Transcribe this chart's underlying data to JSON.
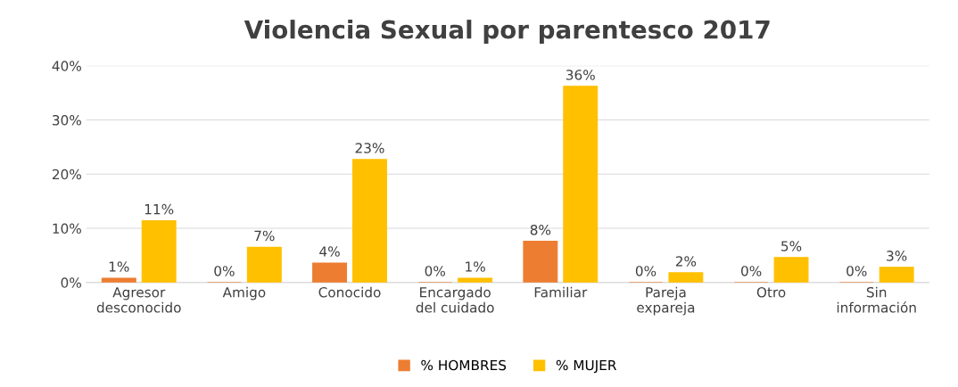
{
  "chart_data": {
    "type": "bar",
    "title": "Violencia Sexual por parentesco 2017",
    "categories": [
      "Agresor\ndesconocido",
      "Amigo",
      "Conocido",
      "Encargado\ndel cuidado",
      "Familiar",
      "Pareja\nexpareja",
      "Otro",
      "Sin\ninformación"
    ],
    "series": [
      {
        "name": "% HOMBRES",
        "color": "#ed7d31",
        "values": [
          0.8,
          0,
          3.6,
          0,
          7.6,
          0,
          0,
          0
        ],
        "value_labels": [
          "1%",
          "0%",
          "4%",
          "0%",
          "8%",
          "0%",
          "0%",
          "0%"
        ]
      },
      {
        "name": "% MUJER",
        "color": "#ffc000",
        "values": [
          11.4,
          6.5,
          22.7,
          0.8,
          36.2,
          1.8,
          4.6,
          2.8
        ],
        "value_labels": [
          "11%",
          "7%",
          "23%",
          "1%",
          "36%",
          "2%",
          "5%",
          "3%"
        ]
      }
    ],
    "ylim": [
      0,
      40
    ],
    "yticks": [
      {
        "value": 0,
        "label": "0%"
      },
      {
        "value": 10,
        "label": "10%"
      },
      {
        "value": 20,
        "label": "20%"
      },
      {
        "value": 30,
        "label": "30%"
      },
      {
        "value": 40,
        "label": "40%"
      }
    ],
    "grid": "y",
    "legend": "bottom"
  }
}
